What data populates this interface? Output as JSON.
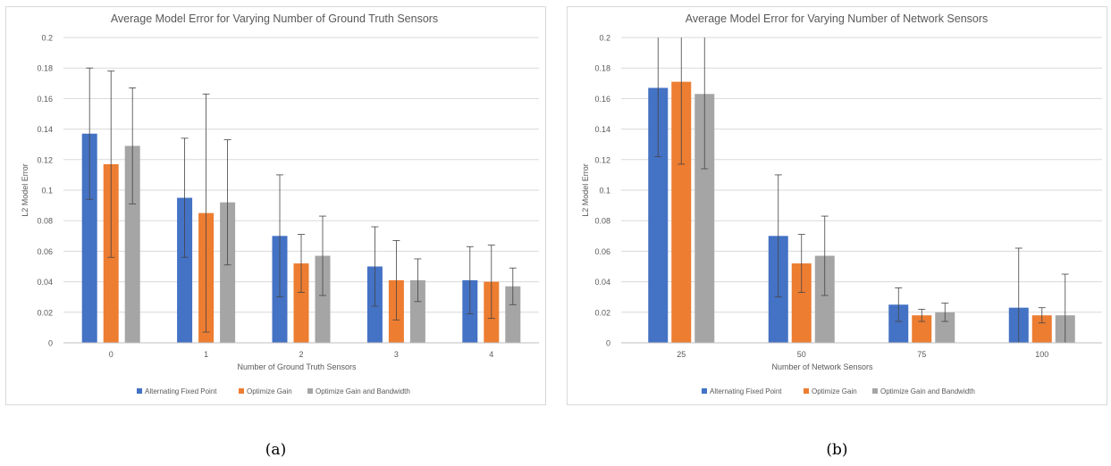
{
  "captions": [
    "(a)",
    "(b)"
  ],
  "chart_data": [
    {
      "type": "bar",
      "title": "Average Model Error for Varying Number of Ground Truth Sensors",
      "xlabel": "Number of Ground Truth Sensors",
      "ylabel": "L2 Model Error",
      "ylim": [
        0,
        0.2
      ],
      "yticks": [
        0,
        0.02,
        0.04,
        0.06,
        0.08,
        0.1,
        0.12,
        0.14,
        0.16,
        0.18,
        0.2
      ],
      "ytick_labels": [
        "0",
        "0.02",
        "0.04",
        "0.06",
        "0.08",
        "0.1",
        "0.12",
        "0.14",
        "0.16",
        "0.18",
        "0.2"
      ],
      "grid": true,
      "legend_position": "bottom",
      "categories": [
        "0",
        "1",
        "2",
        "3",
        "4"
      ],
      "series": [
        {
          "name": "Alternating Fixed Point",
          "color": "#4472c4",
          "values": [
            0.137,
            0.095,
            0.07,
            0.05,
            0.041
          ],
          "error": [
            0.043,
            0.039,
            0.04,
            0.026,
            0.022
          ]
        },
        {
          "name": "Optimize Gain",
          "color": "#ed7d31",
          "values": [
            0.117,
            0.085,
            0.052,
            0.041,
            0.04
          ],
          "error": [
            0.061,
            0.078,
            0.019,
            0.026,
            0.024
          ]
        },
        {
          "name": "Optimize Gain and Bandwidth",
          "color": "#a5a5a5",
          "values": [
            0.129,
            0.092,
            0.057,
            0.041,
            0.037
          ],
          "error": [
            0.038,
            0.041,
            0.026,
            0.014,
            0.012
          ]
        }
      ]
    },
    {
      "type": "bar",
      "title": "Average Model Error for Varying Number of Network Sensors",
      "xlabel": "Number of Network Sensors",
      "ylabel": "L2 Model Error",
      "ylim": [
        0,
        0.2
      ],
      "yticks": [
        0,
        0.02,
        0.04,
        0.06,
        0.08,
        0.1,
        0.12,
        0.14,
        0.16,
        0.18,
        0.2
      ],
      "ytick_labels": [
        "0",
        "0.02",
        "0.04",
        "0.06",
        "0.08",
        "0.1",
        "0.12",
        "0.14",
        "0.16",
        "0.18",
        "0.2"
      ],
      "grid": true,
      "legend_position": "bottom",
      "categories": [
        "25",
        "50",
        "75",
        "100"
      ],
      "series": [
        {
          "name": "Alternating Fixed Point",
          "color": "#4472c4",
          "values": [
            0.167,
            0.07,
            0.025,
            0.023
          ],
          "error": [
            0.045,
            0.04,
            0.011,
            0.039
          ]
        },
        {
          "name": "Optimize Gain",
          "color": "#ed7d31",
          "values": [
            0.171,
            0.052,
            0.018,
            0.018
          ],
          "error": [
            0.054,
            0.019,
            0.004,
            0.005
          ]
        },
        {
          "name": "Optimize Gain and Bandwidth",
          "color": "#a5a5a5",
          "values": [
            0.163,
            0.057,
            0.02,
            0.018
          ],
          "error": [
            0.049,
            0.026,
            0.006,
            0.027
          ]
        }
      ]
    }
  ]
}
